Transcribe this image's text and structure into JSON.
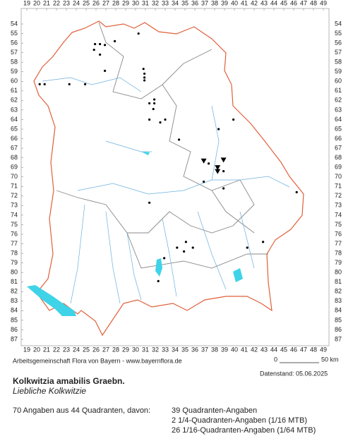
{
  "grid": {
    "columns": [
      19,
      20,
      21,
      22,
      23,
      24,
      25,
      26,
      27,
      28,
      29,
      30,
      31,
      32,
      33,
      34,
      35,
      36,
      37,
      38,
      39,
      40,
      41,
      42,
      43,
      44,
      45,
      46,
      47,
      48,
      49
    ],
    "rows": [
      54,
      55,
      56,
      57,
      58,
      59,
      60,
      61,
      62,
      63,
      64,
      65,
      66,
      67,
      68,
      69,
      70,
      71,
      72,
      73,
      74,
      75,
      76,
      77,
      78,
      79,
      80,
      81,
      82,
      83,
      84,
      85,
      86,
      87
    ]
  },
  "points": [
    {
      "x": 30.3,
      "y": 55.0
    },
    {
      "x": 27.9,
      "y": 55.8
    },
    {
      "x": 25.9,
      "y": 56.1
    },
    {
      "x": 26.4,
      "y": 56.1
    },
    {
      "x": 26.9,
      "y": 56.2
    },
    {
      "x": 25.8,
      "y": 56.7
    },
    {
      "x": 26.4,
      "y": 57.2
    },
    {
      "x": 26.9,
      "y": 58.9
    },
    {
      "x": 30.8,
      "y": 58.7
    },
    {
      "x": 30.9,
      "y": 59.2
    },
    {
      "x": 30.9,
      "y": 59.6
    },
    {
      "x": 30.9,
      "y": 59.9
    },
    {
      "x": 20.3,
      "y": 60.3
    },
    {
      "x": 20.8,
      "y": 60.3
    },
    {
      "x": 23.3,
      "y": 60.3
    },
    {
      "x": 24.9,
      "y": 60.3
    },
    {
      "x": 31.4,
      "y": 62.3
    },
    {
      "x": 31.9,
      "y": 61.9
    },
    {
      "x": 31.9,
      "y": 62.3
    },
    {
      "x": 31.8,
      "y": 62.9
    },
    {
      "x": 31.4,
      "y": 64.0
    },
    {
      "x": 32.5,
      "y": 64.3
    },
    {
      "x": 33.0,
      "y": 64.0
    },
    {
      "x": 38.4,
      "y": 65.0
    },
    {
      "x": 39.9,
      "y": 64.0
    },
    {
      "x": 34.4,
      "y": 66.1
    },
    {
      "x": 37.4,
      "y": 68.6
    },
    {
      "x": 38.9,
      "y": 69.4
    },
    {
      "x": 36.9,
      "y": 70.5
    },
    {
      "x": 38.9,
      "y": 71.2
    },
    {
      "x": 46.3,
      "y": 71.6
    },
    {
      "x": 31.4,
      "y": 72.7
    },
    {
      "x": 35.1,
      "y": 76.8
    },
    {
      "x": 34.2,
      "y": 77.4
    },
    {
      "x": 35.8,
      "y": 77.4
    },
    {
      "x": 34.9,
      "y": 77.8
    },
    {
      "x": 32.9,
      "y": 78.5
    },
    {
      "x": 42.9,
      "y": 76.8
    },
    {
      "x": 41.3,
      "y": 77.4
    },
    {
      "x": 32.3,
      "y": 80.9
    }
  ],
  "triangles": [
    {
      "x": 36.9,
      "y": 68.3
    },
    {
      "x": 38.3,
      "y": 69.0
    },
    {
      "x": 38.9,
      "y": 68.2
    },
    {
      "x": 38.3,
      "y": 69.4
    }
  ],
  "footer": {
    "credit": "Arbeitsgemeinschaft Flora von Bayern - www.bayernflora.de",
    "scale_start": "0",
    "scale_end": "50 km",
    "date": "Datenstand: 05.06.2025",
    "title": "Kolkwitzia amabilis Graebn.",
    "common_name": "Liebliche Kolkwitzie",
    "summary": "70 Angaben aus 44 Quadranten, davon:",
    "details": [
      "39 Quadranten-Angaben",
      "2 1/4-Quadranten-Angaben (1/16 MTB)",
      "26 1/16-Quadranten-Angaben (1/64 MTB)"
    ]
  }
}
